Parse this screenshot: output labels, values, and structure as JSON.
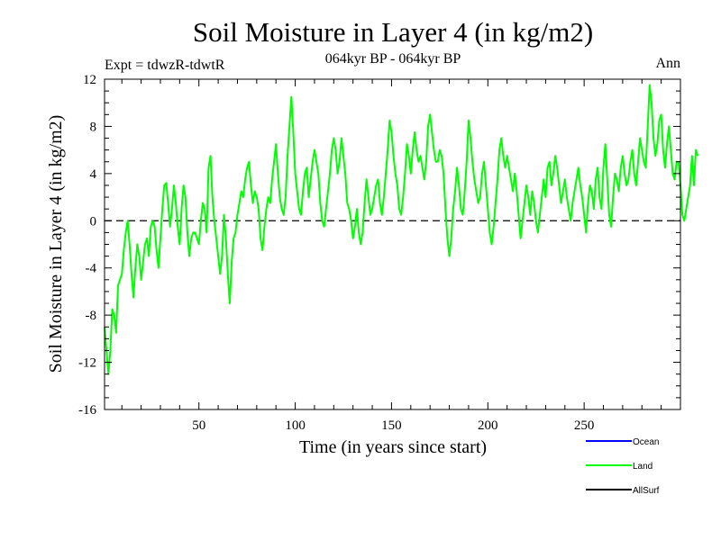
{
  "chart_data": {
    "type": "line",
    "title": "Soil Moisture in Layer 4 (in kg/m2)",
    "subtitle": "064kyr BP - 064kyr BP",
    "left_note": "Expt = tdwzR-tdwtR",
    "right_note": "Ann",
    "xlabel": "Time (in years since start)",
    "ylabel": "Soil Moisture in Layer 4 (in kg/m2)",
    "xlim": [
      1,
      300
    ],
    "ylim": [
      -16,
      12
    ],
    "x_ticks": [
      50,
      100,
      150,
      200,
      250
    ],
    "y_ticks": [
      12,
      8,
      4,
      0,
      -4,
      -8,
      -12,
      -16
    ],
    "zero_line": "dashed",
    "legend_position": "bottom-right",
    "legend": [
      {
        "name": "Ocean",
        "color": "#0000ff"
      },
      {
        "name": "Land",
        "color": "#00ff00"
      },
      {
        "name": "AllSurf",
        "color": "#000000"
      }
    ],
    "series": [
      {
        "name": "Land",
        "color": "#00ff00",
        "x_start": 1,
        "x_step": 1,
        "values": [
          -9.0,
          -11.0,
          -13.0,
          -11.0,
          -7.5,
          -8.0,
          -9.5,
          -5.5,
          -5.0,
          -4.5,
          -2.5,
          -1.0,
          0.0,
          -2.0,
          -4.5,
          -6.5,
          -4.0,
          -2.0,
          -3.0,
          -5.0,
          -3.5,
          -2.0,
          -1.5,
          -3.0,
          -0.5,
          0.0,
          -0.5,
          -2.5,
          -4.0,
          -1.5,
          1.0,
          3.0,
          3.2,
          1.5,
          -0.5,
          1.0,
          3.0,
          1.5,
          -0.5,
          -2.0,
          1.0,
          3.0,
          2.0,
          -1.0,
          -3.0,
          -1.5,
          -1.0,
          -1.0,
          -1.5,
          -2.0,
          0.0,
          1.5,
          1.0,
          -1.0,
          4.5,
          5.5,
          2.0,
          0.0,
          -1.5,
          -3.0,
          -4.5,
          -3.0,
          0.5,
          -1.5,
          -4.5,
          -7.0,
          -3.5,
          -1.5,
          -1.0,
          0.5,
          1.5,
          2.5,
          2.0,
          3.5,
          4.5,
          5.0,
          3.0,
          1.5,
          2.5,
          2.0,
          1.0,
          -1.5,
          -2.5,
          -0.5,
          1.0,
          2.0,
          1.5,
          3.5,
          5.0,
          6.5,
          4.0,
          2.0,
          1.0,
          0.5,
          2.0,
          5.5,
          8.0,
          10.5,
          7.5,
          4.0,
          2.5,
          1.0,
          0.5,
          2.5,
          4.0,
          4.5,
          2.0,
          3.5,
          5.0,
          6.0,
          5.0,
          4.0,
          1.5,
          0.0,
          -0.5,
          1.0,
          2.5,
          4.0,
          6.0,
          7.0,
          6.0,
          4.0,
          5.0,
          7.0,
          5.5,
          4.0,
          1.5,
          1.0,
          0.0,
          -1.5,
          -0.5,
          1.0,
          -1.0,
          -2.0,
          -1.0,
          1.5,
          3.5,
          2.0,
          0.5,
          1.0,
          2.0,
          3.0,
          3.5,
          1.5,
          0.5,
          2.0,
          4.0,
          6.0,
          8.5,
          7.5,
          5.5,
          4.0,
          3.0,
          1.0,
          0.5,
          2.0,
          4.0,
          6.5,
          5.5,
          4.0,
          6.0,
          7.5,
          6.0,
          5.0,
          5.5,
          4.5,
          3.5,
          5.0,
          8.0,
          9.0,
          7.5,
          6.0,
          5.0,
          5.0,
          6.0,
          5.5,
          4.0,
          1.0,
          -1.5,
          -3.0,
          -1.5,
          1.0,
          2.5,
          4.5,
          3.0,
          1.0,
          0.5,
          2.5,
          5.0,
          8.5,
          7.0,
          5.0,
          3.5,
          2.5,
          1.5,
          2.0,
          4.0,
          5.0,
          3.0,
          1.0,
          -1.0,
          -2.0,
          -0.5,
          1.5,
          3.5,
          6.0,
          7.0,
          5.5,
          4.5,
          5.5,
          4.5,
          3.5,
          2.5,
          4.0,
          2.5,
          0.5,
          -1.5,
          0.0,
          1.5,
          3.0,
          2.0,
          0.5,
          2.5,
          1.5,
          0.0,
          -1.0,
          0.5,
          2.0,
          3.5,
          2.0,
          4.5,
          5.0,
          3.0,
          4.0,
          5.5,
          4.5,
          3.0,
          1.5,
          2.5,
          3.5,
          2.0,
          1.0,
          0.0,
          1.5,
          2.5,
          3.5,
          4.5,
          3.0,
          2.0,
          0.5,
          -1.0,
          1.5,
          3.0,
          2.5,
          1.0,
          3.5,
          4.5,
          2.0,
          1.0,
          4.5,
          6.5,
          3.5,
          0.5,
          -0.5,
          2.0,
          4.0,
          3.5,
          2.5,
          4.5,
          5.5,
          4.0,
          3.0,
          3.5,
          5.0,
          6.0,
          4.0,
          3.0,
          5.0,
          7.0,
          6.0,
          5.0,
          4.5,
          8.0,
          11.5,
          10.0,
          7.0,
          5.5,
          6.5,
          8.5,
          9.0,
          6.0,
          4.5,
          6.5,
          8.0,
          6.0,
          4.0,
          3.5,
          5.0,
          5.0,
          3.0,
          0.5,
          0.0,
          1.0,
          2.0,
          3.0,
          5.5,
          3.0,
          6.0,
          5.5
        ]
      }
    ]
  }
}
